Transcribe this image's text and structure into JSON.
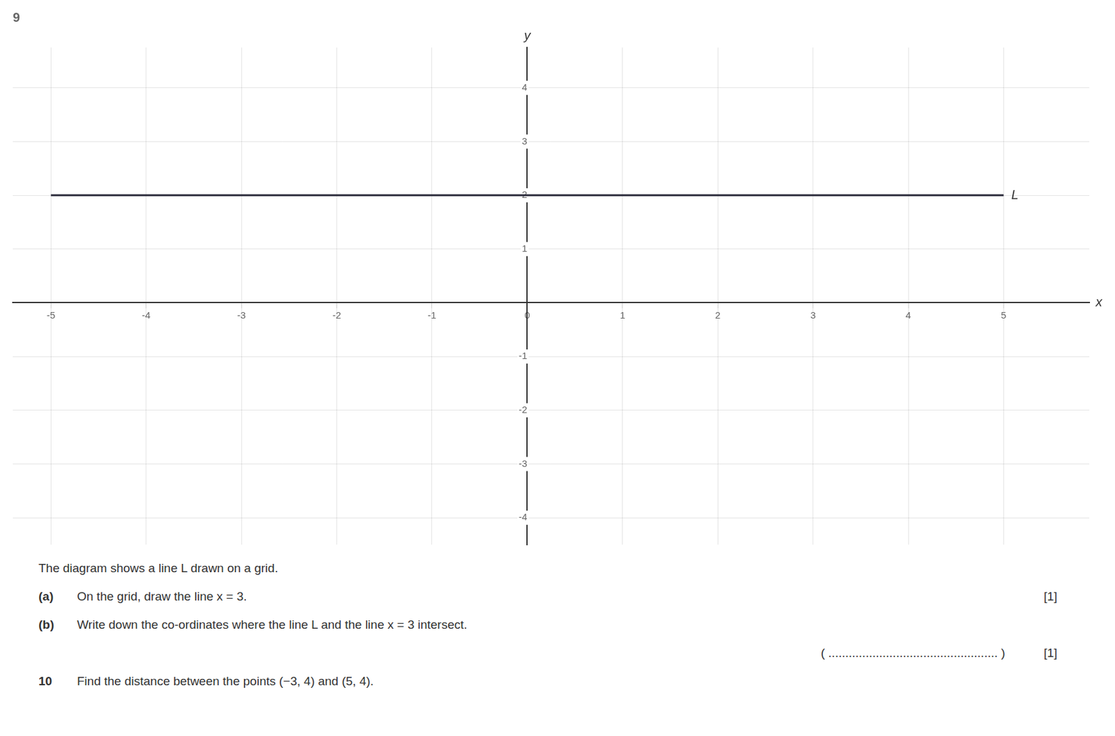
{
  "chart_data": {
    "type": "line",
    "title": "9",
    "x_label": "x",
    "y_label": "y",
    "x": [
      -5,
      5
    ],
    "series": [
      {
        "name": "L",
        "color": "#2a2a3a",
        "values": [
          2,
          2
        ]
      }
    ],
    "xlim": [
      -5.4,
      5.9
    ],
    "xticks": [
      -5,
      -4,
      -3,
      -2,
      -1,
      0,
      1,
      2,
      3,
      4,
      5
    ],
    "ylim": [
      -4.5,
      4.75
    ],
    "yticks": [
      -4,
      -3,
      -2,
      -1,
      1,
      2,
      3,
      4
    ],
    "grid": true,
    "annotations": [
      {
        "text": "The diagram shows a line L drawn on a grid."
      },
      {
        "label": "(a)",
        "text": "On the grid, draw the line x = 3.",
        "mark": "[1]"
      },
      {
        "label": "(b)",
        "text": "Write down the co-ordinates where the line L and the line x = 3 intersect."
      },
      {
        "text": "( .................................................. )",
        "mark": "[1]"
      },
      {
        "label": "10",
        "text": "Find the distance between the points (−3, 4) and (5, 4)."
      }
    ]
  }
}
